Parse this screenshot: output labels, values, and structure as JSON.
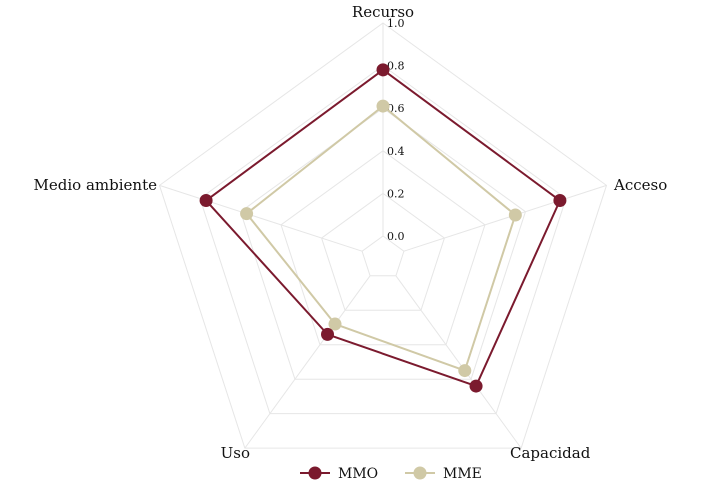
{
  "chart_data": {
    "type": "radar",
    "axes": [
      "Recurso",
      "Acceso",
      "Capacidad",
      "Uso",
      "Medio ambiente"
    ],
    "rlim": [
      0,
      1.0
    ],
    "ticks": [
      "0.0",
      "0.2",
      "0.4",
      "0.6",
      "0.8",
      "1.0"
    ],
    "tick_values": [
      0,
      0.2,
      0.4,
      0.6,
      0.8,
      1.0
    ],
    "grid": true,
    "legend_position": "bottom",
    "series": [
      {
        "name": "MMO",
        "color": "#7b1a2e",
        "values": [
          0.78,
          0.77,
          0.64,
          0.34,
          0.77
        ]
      },
      {
        "name": "MME",
        "color": "#d0c9a6",
        "values": [
          0.61,
          0.55,
          0.55,
          0.28,
          0.57
        ]
      }
    ]
  }
}
